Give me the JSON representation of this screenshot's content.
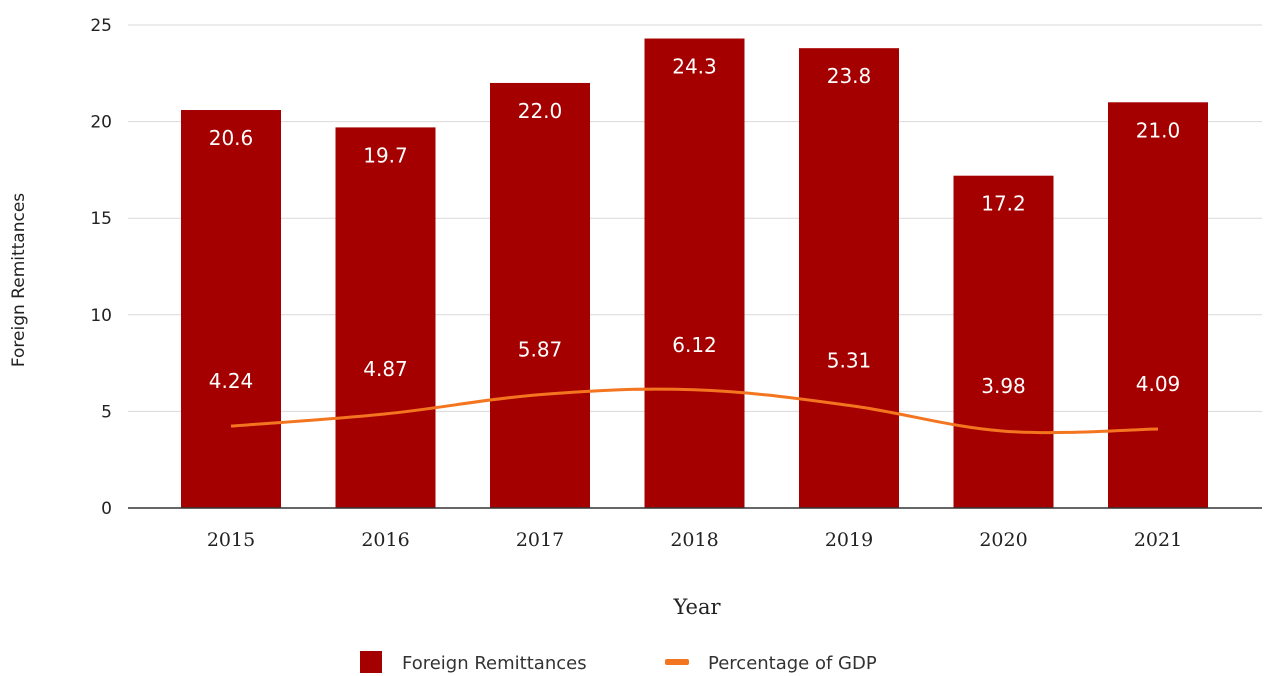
{
  "chart_data": {
    "type": "bar",
    "categories": [
      "2015",
      "2016",
      "2017",
      "2018",
      "2019",
      "2020",
      "2021"
    ],
    "series": [
      {
        "name": "Foreign Remittances",
        "type": "bar",
        "values": [
          20.6,
          19.7,
          22.0,
          24.3,
          23.8,
          17.2,
          21.0
        ],
        "labels": [
          "20.6",
          "19.7",
          "22.0",
          "24.3",
          "23.8",
          "17.2",
          "21.0"
        ],
        "color": "#a50000"
      },
      {
        "name": "Percentage of GDP",
        "type": "line",
        "values": [
          4.24,
          4.87,
          5.87,
          6.12,
          5.31,
          3.98,
          4.09
        ],
        "labels": [
          "4.24",
          "4.87",
          "5.87",
          "6.12",
          "5.31",
          "3.98",
          "4.09"
        ],
        "color": "#f4751f"
      }
    ],
    "xlabel": "Year",
    "ylabel": "Foreign Remittances",
    "ylim": [
      0,
      25
    ],
    "yticks": [
      0,
      5,
      10,
      15,
      20,
      25
    ],
    "grid": true,
    "legend_position": "bottom"
  }
}
